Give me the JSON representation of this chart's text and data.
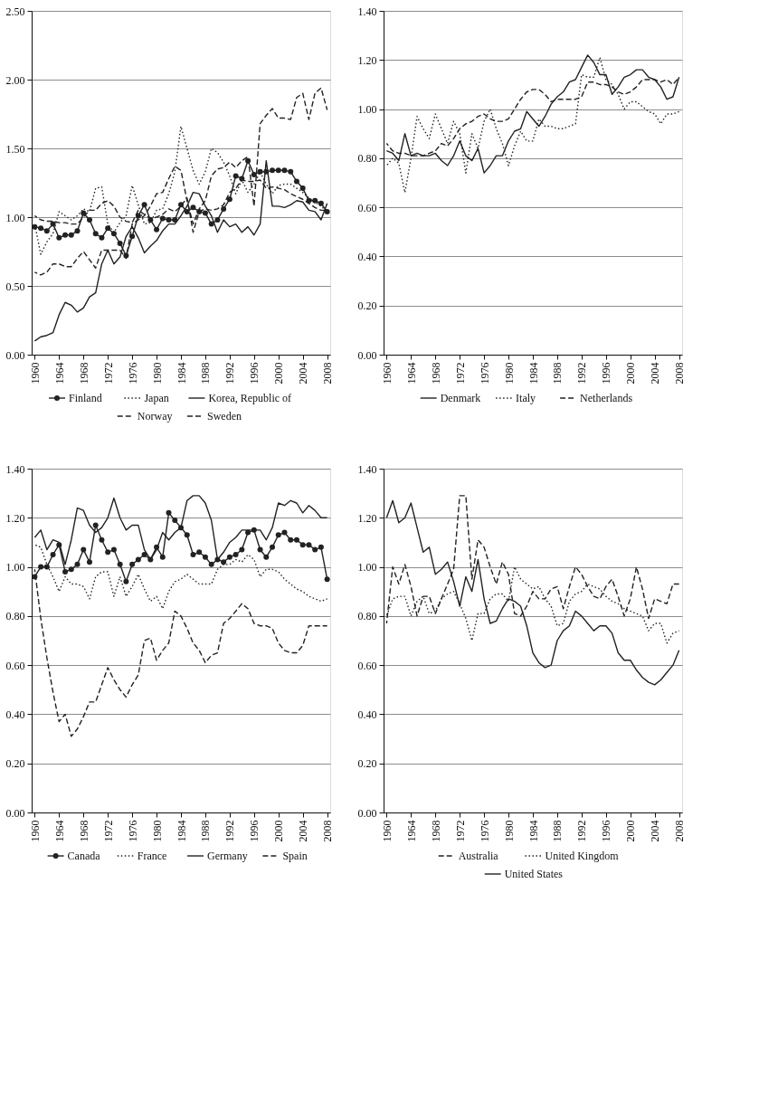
{
  "chart_data": [
    {
      "type": "line",
      "x": [
        1960,
        1961,
        1962,
        1963,
        1964,
        1965,
        1966,
        1967,
        1968,
        1969,
        1970,
        1971,
        1972,
        1973,
        1974,
        1975,
        1976,
        1977,
        1978,
        1979,
        1980,
        1981,
        1982,
        1983,
        1984,
        1985,
        1986,
        1987,
        1988,
        1989,
        1990,
        1991,
        1992,
        1993,
        1994,
        1995,
        1996,
        1997,
        1998,
        1999,
        2000,
        2001,
        2002,
        2003,
        2004,
        2005,
        2006,
        2007,
        2008
      ],
      "xlim": [
        1959.5,
        2008.5
      ],
      "xticks": [
        1960,
        1964,
        1968,
        1972,
        1976,
        1980,
        1984,
        1988,
        1992,
        1996,
        2000,
        2004,
        2008
      ],
      "ylim": [
        0,
        2.5
      ],
      "yticks": [
        {
          "value": 0,
          "label": "0.00"
        },
        {
          "value": 0.5,
          "label": "0.50"
        },
        {
          "value": 1,
          "label": "1.00"
        },
        {
          "value": 1.5,
          "label": "1.50"
        },
        {
          "value": 2,
          "label": "2.00"
        },
        {
          "value": 2.5,
          "label": "2.50"
        }
      ],
      "grid": "y",
      "legend": "bottom",
      "series": [
        {
          "name": "Finland",
          "color": "#222222",
          "marker": "circle",
          "line_style": "solid",
          "values": [
            0.93,
            0.92,
            0.9,
            0.95,
            0.85,
            0.87,
            0.87,
            0.9,
            1.03,
            0.98,
            0.88,
            0.85,
            0.92,
            0.88,
            0.81,
            0.72,
            0.86,
            1.01,
            1.09,
            0.98,
            0.91,
            0.99,
            0.98,
            0.98,
            1.09,
            1.04,
            1.07,
            1.04,
            1.03,
            0.95,
            0.98,
            1.06,
            1.13,
            1.3,
            1.28,
            1.41,
            1.31,
            1.33,
            1.33,
            1.34,
            1.34,
            1.34,
            1.33,
            1.26,
            1.21,
            1.12,
            1.12,
            1.1,
            1.04
          ]
        },
        {
          "name": "Japan",
          "color": "#222222",
          "line_style": "dotted",
          "values": [
            0.95,
            0.73,
            0.82,
            0.88,
            1.04,
            1.01,
            0.98,
            1.01,
            1.06,
            1.04,
            1.21,
            1.22,
            0.95,
            0.89,
            0.96,
            1.01,
            1.23,
            1.09,
            0.95,
            0.96,
            1.05,
            1.06,
            1.17,
            1.33,
            1.66,
            1.5,
            1.34,
            1.24,
            1.33,
            1.5,
            1.47,
            1.4,
            1.3,
            1.17,
            1.27,
            1.18,
            1.24,
            1.33,
            1.24,
            1.17,
            1.23,
            1.24,
            1.24,
            1.21,
            1.18,
            1.14,
            1.11,
            1.08,
            1.04
          ]
        },
        {
          "name": "Korea, Republic of",
          "color": "#222222",
          "line_style": "solid",
          "values": [
            0.1,
            0.13,
            0.14,
            0.16,
            0.29,
            0.38,
            0.36,
            0.31,
            0.34,
            0.42,
            0.45,
            0.66,
            0.76,
            0.66,
            0.71,
            0.86,
            0.93,
            0.85,
            0.74,
            0.79,
            0.83,
            0.9,
            0.95,
            0.95,
            1.01,
            1.08,
            1.18,
            1.17,
            1.08,
            1.01,
            0.89,
            0.98,
            0.93,
            0.95,
            0.89,
            0.93,
            0.87,
            0.95,
            1.41,
            1.08,
            1.08,
            1.07,
            1.09,
            1.12,
            1.11,
            1.05,
            1.04,
            0.98,
            1.1
          ]
        },
        {
          "name": "Norway",
          "color": "#222222",
          "line_style": "dashed",
          "values": [
            0.6,
            0.58,
            0.6,
            0.66,
            0.66,
            0.64,
            0.64,
            0.7,
            0.75,
            0.69,
            0.63,
            0.76,
            0.76,
            0.76,
            0.76,
            0.7,
            0.95,
            0.98,
            1.01,
            1.08,
            1.17,
            1.18,
            1.28,
            1.37,
            1.34,
            1.12,
            0.95,
            1.06,
            1.12,
            1.3,
            1.35,
            1.36,
            1.4,
            1.36,
            1.41,
            1.44,
            1.08,
            1.68,
            1.74,
            1.79,
            1.72,
            1.72,
            1.71,
            1.87,
            1.9,
            1.71,
            1.9,
            1.94,
            1.78
          ]
        },
        {
          "name": "Sweden",
          "color": "#222222",
          "line_style": "dashed",
          "values": [
            1.01,
            0.98,
            0.97,
            0.97,
            0.96,
            0.96,
            0.95,
            0.95,
            1.0,
            1.05,
            1.05,
            1.1,
            1.12,
            1.08,
            1.0,
            0.97,
            0.96,
            1.05,
            1.02,
            0.99,
            1.0,
            1.02,
            1.06,
            1.04,
            1.08,
            1.14,
            0.89,
            1.04,
            1.06,
            1.05,
            1.06,
            1.09,
            1.18,
            1.21,
            1.27,
            1.26,
            1.26,
            1.27,
            1.21,
            1.22,
            1.21,
            1.2,
            1.17,
            1.15,
            1.13,
            1.1,
            1.07,
            1.05,
            1.05
          ]
        }
      ]
    },
    {
      "type": "line",
      "x": [
        1960,
        1961,
        1962,
        1963,
        1964,
        1965,
        1966,
        1967,
        1968,
        1969,
        1970,
        1971,
        1972,
        1973,
        1974,
        1975,
        1976,
        1977,
        1978,
        1979,
        1980,
        1981,
        1982,
        1983,
        1984,
        1985,
        1986,
        1987,
        1988,
        1989,
        1990,
        1991,
        1992,
        1993,
        1994,
        1995,
        1996,
        1997,
        1998,
        1999,
        2000,
        2001,
        2002,
        2003,
        2004,
        2005,
        2006,
        2007,
        2008
      ],
      "xlim": [
        1959.5,
        2008.5
      ],
      "xticks": [
        1960,
        1964,
        1968,
        1972,
        1976,
        1980,
        1984,
        1988,
        1992,
        1996,
        2000,
        2004,
        2008
      ],
      "ylim": [
        0,
        1.4
      ],
      "yticks": [
        {
          "value": 0,
          "label": "0.00"
        },
        {
          "value": 0.2,
          "label": "0.20"
        },
        {
          "value": 0.4,
          "label": "0.40"
        },
        {
          "value": 0.6,
          "label": "0.60"
        },
        {
          "value": 0.8,
          "label": "0.80"
        },
        {
          "value": 1,
          "label": "1.00"
        },
        {
          "value": 1.2,
          "label": "1.20"
        },
        {
          "value": 1.4,
          "label": "1.40"
        }
      ],
      "grid": "y",
      "legend": "bottom",
      "series": [
        {
          "name": "Denmark",
          "color": "#222222",
          "line_style": "solid",
          "values": [
            0.83,
            0.82,
            0.79,
            0.9,
            0.81,
            0.82,
            0.81,
            0.81,
            0.82,
            0.79,
            0.77,
            0.81,
            0.87,
            0.81,
            0.79,
            0.84,
            0.74,
            0.77,
            0.81,
            0.81,
            0.87,
            0.91,
            0.92,
            0.99,
            0.96,
            0.93,
            0.97,
            1.02,
            1.05,
            1.07,
            1.11,
            1.12,
            1.17,
            1.22,
            1.19,
            1.14,
            1.14,
            1.06,
            1.09,
            1.13,
            1.14,
            1.16,
            1.16,
            1.13,
            1.12,
            1.09,
            1.04,
            1.05,
            1.13
          ]
        },
        {
          "name": "Italy",
          "color": "#222222",
          "line_style": "dotted",
          "values": [
            0.77,
            0.8,
            0.78,
            0.66,
            0.8,
            0.97,
            0.92,
            0.88,
            0.98,
            0.92,
            0.86,
            0.95,
            0.9,
            0.74,
            0.9,
            0.84,
            0.95,
            1.0,
            0.92,
            0.86,
            0.77,
            0.85,
            0.91,
            0.87,
            0.87,
            0.96,
            0.93,
            0.93,
            0.92,
            0.92,
            0.93,
            0.94,
            1.14,
            1.13,
            1.13,
            1.21,
            1.12,
            1.1,
            1.06,
            1.0,
            1.03,
            1.03,
            1.01,
            0.99,
            0.98,
            0.94,
            0.98,
            0.98,
            0.99
          ]
        },
        {
          "name": "Netherlands",
          "color": "#222222",
          "line_style": "dashed",
          "values": [
            0.86,
            0.83,
            0.82,
            0.82,
            0.81,
            0.81,
            0.81,
            0.82,
            0.83,
            0.86,
            0.85,
            0.88,
            0.92,
            0.94,
            0.95,
            0.97,
            0.98,
            0.96,
            0.95,
            0.95,
            0.96,
            1.0,
            1.04,
            1.07,
            1.08,
            1.08,
            1.06,
            1.03,
            1.04,
            1.04,
            1.04,
            1.04,
            1.05,
            1.11,
            1.11,
            1.1,
            1.1,
            1.09,
            1.07,
            1.06,
            1.07,
            1.09,
            1.12,
            1.12,
            1.12,
            1.11,
            1.12,
            1.1,
            1.13
          ]
        }
      ]
    },
    {
      "type": "line",
      "x": [
        1960,
        1961,
        1962,
        1963,
        1964,
        1965,
        1966,
        1967,
        1968,
        1969,
        1970,
        1971,
        1972,
        1973,
        1974,
        1975,
        1976,
        1977,
        1978,
        1979,
        1980,
        1981,
        1982,
        1983,
        1984,
        1985,
        1986,
        1987,
        1988,
        1989,
        1990,
        1991,
        1992,
        1993,
        1994,
        1995,
        1996,
        1997,
        1998,
        1999,
        2000,
        2001,
        2002,
        2003,
        2004,
        2005,
        2006,
        2007,
        2008
      ],
      "xlim": [
        1959.5,
        2008.5
      ],
      "xticks": [
        1960,
        1964,
        1968,
        1972,
        1976,
        1980,
        1984,
        1988,
        1992,
        1996,
        2000,
        2004,
        2008
      ],
      "ylim": [
        0,
        1.4
      ],
      "yticks": [
        {
          "value": 0,
          "label": "0.00"
        },
        {
          "value": 0.2,
          "label": "0.20"
        },
        {
          "value": 0.4,
          "label": "0.40"
        },
        {
          "value": 0.6,
          "label": "0.60"
        },
        {
          "value": 0.8,
          "label": "0.80"
        },
        {
          "value": 1,
          "label": "1.00"
        },
        {
          "value": 1.2,
          "label": "1.20"
        },
        {
          "value": 1.4,
          "label": "1.40"
        }
      ],
      "grid": "y",
      "legend": "bottom",
      "series": [
        {
          "name": "Canada",
          "color": "#222222",
          "marker": "circle",
          "line_style": "solid",
          "values": [
            0.96,
            1.0,
            1.0,
            1.05,
            1.09,
            0.98,
            0.99,
            1.01,
            1.07,
            1.02,
            1.17,
            1.11,
            1.06,
            1.07,
            1.01,
            0.94,
            1.01,
            1.03,
            1.05,
            1.03,
            1.08,
            1.04,
            1.22,
            1.19,
            1.16,
            1.13,
            1.05,
            1.06,
            1.04,
            1.01,
            1.03,
            1.02,
            1.04,
            1.05,
            1.07,
            1.14,
            1.15,
            1.07,
            1.04,
            1.08,
            1.13,
            1.14,
            1.11,
            1.11,
            1.09,
            1.09,
            1.07,
            1.08,
            0.95
          ]
        },
        {
          "name": "France",
          "color": "#222222",
          "line_style": "dotted",
          "values": [
            1.09,
            1.08,
            1.01,
            0.96,
            0.9,
            0.96,
            0.93,
            0.93,
            0.92,
            0.87,
            0.96,
            0.98,
            0.98,
            0.88,
            0.96,
            0.88,
            0.92,
            0.97,
            0.91,
            0.86,
            0.88,
            0.83,
            0.9,
            0.94,
            0.95,
            0.97,
            0.95,
            0.93,
            0.93,
            0.93,
            0.99,
            1.01,
            1.01,
            1.03,
            1.02,
            1.05,
            1.03,
            0.96,
            0.99,
            0.99,
            0.98,
            0.95,
            0.93,
            0.91,
            0.9,
            0.88,
            0.87,
            0.86,
            0.87
          ]
        },
        {
          "name": "Germany",
          "color": "#222222",
          "line_style": "solid",
          "values": [
            1.12,
            1.15,
            1.07,
            1.11,
            1.1,
            1.01,
            1.11,
            1.24,
            1.23,
            1.17,
            1.14,
            1.16,
            1.2,
            1.28,
            1.2,
            1.15,
            1.17,
            1.17,
            1.07,
            1.03,
            1.07,
            1.14,
            1.11,
            1.14,
            1.16,
            1.27,
            1.29,
            1.29,
            1.26,
            1.19,
            1.03,
            1.06,
            1.1,
            1.12,
            1.15,
            1.15,
            1.15,
            1.15,
            1.11,
            1.16,
            1.26,
            1.25,
            1.27,
            1.26,
            1.22,
            1.25,
            1.23,
            1.2,
            1.2
          ]
        },
        {
          "name": "Spain",
          "color": "#222222",
          "line_style": "dashed",
          "values": [
            0.99,
            0.79,
            0.63,
            0.49,
            0.37,
            0.4,
            0.31,
            0.34,
            0.39,
            0.45,
            0.45,
            0.52,
            0.59,
            0.54,
            0.5,
            0.47,
            0.52,
            0.56,
            0.7,
            0.71,
            0.62,
            0.66,
            0.69,
            0.82,
            0.8,
            0.75,
            0.69,
            0.66,
            0.61,
            0.64,
            0.65,
            0.77,
            0.79,
            0.82,
            0.85,
            0.83,
            0.77,
            0.76,
            0.76,
            0.75,
            0.69,
            0.66,
            0.65,
            0.65,
            0.68,
            0.76,
            0.76,
            0.76,
            0.76
          ]
        }
      ]
    },
    {
      "type": "line",
      "x": [
        1960,
        1961,
        1962,
        1963,
        1964,
        1965,
        1966,
        1967,
        1968,
        1969,
        1970,
        1971,
        1972,
        1973,
        1974,
        1975,
        1976,
        1977,
        1978,
        1979,
        1980,
        1981,
        1982,
        1983,
        1984,
        1985,
        1986,
        1987,
        1988,
        1989,
        1990,
        1991,
        1992,
        1993,
        1994,
        1995,
        1996,
        1997,
        1998,
        1999,
        2000,
        2001,
        2002,
        2003,
        2004,
        2005,
        2006,
        2007,
        2008
      ],
      "xlim": [
        1959.5,
        2008.5
      ],
      "xticks": [
        1960,
        1964,
        1968,
        1972,
        1976,
        1980,
        1984,
        1988,
        1992,
        1996,
        2000,
        2004,
        2008
      ],
      "ylim": [
        0,
        1.4
      ],
      "yticks": [
        {
          "value": 0,
          "label": "0.00"
        },
        {
          "value": 0.2,
          "label": "0.20"
        },
        {
          "value": 0.4,
          "label": "0.40"
        },
        {
          "value": 0.6,
          "label": "0.60"
        },
        {
          "value": 0.8,
          "label": "0.80"
        },
        {
          "value": 1,
          "label": "1.00"
        },
        {
          "value": 1.2,
          "label": "1.20"
        },
        {
          "value": 1.4,
          "label": "1.40"
        }
      ],
      "grid": "y",
      "legend": "bottom",
      "series": [
        {
          "name": "Australia",
          "color": "#222222",
          "line_style": "dashed",
          "values": [
            0.77,
            1.0,
            0.93,
            1.01,
            0.92,
            0.8,
            0.88,
            0.88,
            0.81,
            0.87,
            0.93,
            0.99,
            1.29,
            1.29,
            0.95,
            1.11,
            1.08,
            1.0,
            0.93,
            1.02,
            0.97,
            0.81,
            0.8,
            0.84,
            0.9,
            0.87,
            0.87,
            0.91,
            0.92,
            0.83,
            0.92,
            1.0,
            0.97,
            0.92,
            0.88,
            0.87,
            0.92,
            0.95,
            0.88,
            0.8,
            0.87,
            1.0,
            0.91,
            0.79,
            0.87,
            0.86,
            0.85,
            0.93,
            0.93
          ]
        },
        {
          "name": "United Kingdom",
          "color": "#222222",
          "line_style": "dotted",
          "values": [
            0.8,
            0.87,
            0.88,
            0.88,
            0.8,
            0.86,
            0.88,
            0.81,
            0.82,
            0.87,
            0.89,
            0.9,
            0.85,
            0.79,
            0.7,
            0.81,
            0.81,
            0.87,
            0.89,
            0.89,
            0.86,
            1.0,
            0.95,
            0.93,
            0.91,
            0.92,
            0.87,
            0.84,
            0.76,
            0.77,
            0.86,
            0.89,
            0.9,
            0.93,
            0.92,
            0.91,
            0.88,
            0.86,
            0.85,
            0.83,
            0.82,
            0.81,
            0.8,
            0.74,
            0.77,
            0.77,
            0.69,
            0.73,
            0.74
          ]
        },
        {
          "name": "United States",
          "color": "#222222",
          "line_style": "solid",
          "values": [
            1.2,
            1.27,
            1.18,
            1.2,
            1.26,
            1.16,
            1.06,
            1.08,
            0.97,
            0.99,
            1.02,
            0.94,
            0.84,
            0.96,
            0.9,
            1.03,
            0.87,
            0.77,
            0.78,
            0.83,
            0.87,
            0.86,
            0.84,
            0.76,
            0.65,
            0.61,
            0.59,
            0.6,
            0.7,
            0.74,
            0.76,
            0.82,
            0.8,
            0.77,
            0.74,
            0.76,
            0.76,
            0.73,
            0.65,
            0.62,
            0.62,
            0.58,
            0.55,
            0.53,
            0.52,
            0.54,
            0.57,
            0.6,
            0.66
          ]
        }
      ]
    }
  ]
}
